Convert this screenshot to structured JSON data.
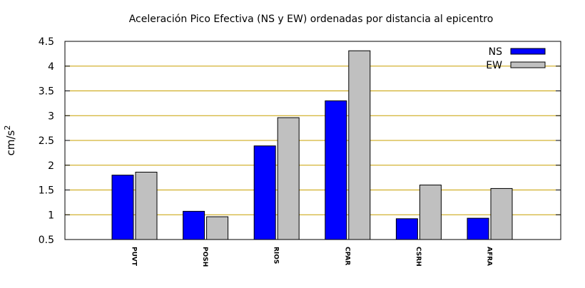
{
  "chart_data": {
    "type": "bar",
    "title": "Aceleración Pico Efectiva (NS y EW) ordenadas por distancia al epicentro",
    "xlabel": "",
    "ylabel": "cm/s",
    "ylabel_superscript": "2",
    "ylim": [
      0.5,
      4.5
    ],
    "yticks": [
      "0.5",
      "1",
      "1.5",
      "2",
      "2.5",
      "3",
      "3.5",
      "4",
      "4.5"
    ],
    "grid": "horizontal",
    "legend_position": "top-right",
    "categories": [
      "PUVT",
      "POSH",
      "RIOS",
      "CPAR",
      "CSRH",
      "AFRA"
    ],
    "series": [
      {
        "name": "NS",
        "color": "#0000ff",
        "values": [
          1.8,
          1.07,
          2.39,
          3.3,
          0.92,
          0.93
        ]
      },
      {
        "name": "EW",
        "color": "#c0c0c0",
        "values": [
          1.86,
          0.96,
          2.96,
          4.31,
          1.6,
          1.53
        ]
      }
    ],
    "grid_color": "#c8a000"
  }
}
